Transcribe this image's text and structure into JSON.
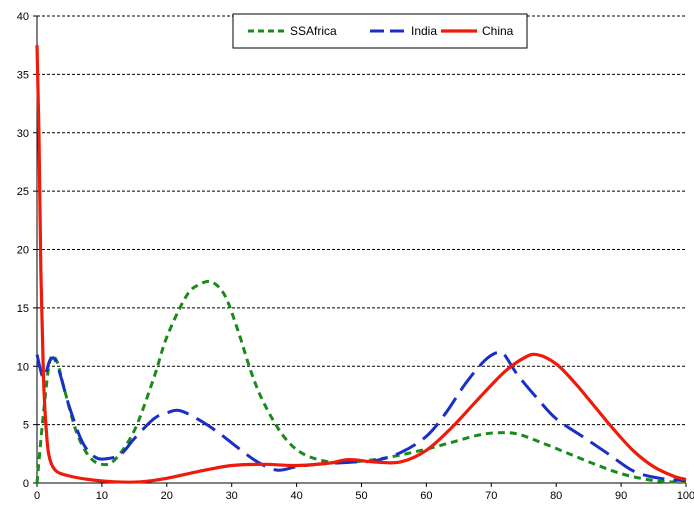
{
  "chart_data": {
    "type": "line",
    "title": "",
    "xlabel": "",
    "ylabel": "",
    "xlim": [
      0,
      100
    ],
    "ylim": [
      0,
      40
    ],
    "xticks": [
      0,
      10,
      20,
      30,
      40,
      50,
      60,
      70,
      80,
      90,
      100
    ],
    "yticks": [
      0,
      5,
      10,
      15,
      20,
      25,
      30,
      35,
      40
    ],
    "grid": "horizontal dashed",
    "legend_position": "top-center",
    "series": [
      {
        "name": "SSAfrica",
        "color": "#1a8a1a",
        "dash": "short-dash",
        "x": [
          0,
          1,
          2,
          3,
          4,
          6,
          8,
          10,
          12,
          15,
          18,
          20,
          23,
          25,
          27,
          29,
          31,
          33,
          35,
          38,
          41,
          45,
          48,
          52,
          56,
          60,
          64,
          68,
          71,
          74,
          78,
          82,
          86,
          90,
          94,
          97,
          100
        ],
        "y": [
          0,
          6,
          10.5,
          10.5,
          8.5,
          4.5,
          2.3,
          1.6,
          2.0,
          4.5,
          9.0,
          12.5,
          16.0,
          17.0,
          17.2,
          16.0,
          13.0,
          9.5,
          6.8,
          4.0,
          2.5,
          1.8,
          1.8,
          2.0,
          2.4,
          2.9,
          3.5,
          4.1,
          4.3,
          4.2,
          3.4,
          2.5,
          1.6,
          0.8,
          0.3,
          0.1,
          0.1
        ]
      },
      {
        "name": "India",
        "color": "#1a2fc8",
        "dash": "long-dash",
        "x": [
          0,
          1,
          2,
          3,
          5,
          7,
          9,
          11,
          13,
          15,
          18,
          20,
          22,
          25,
          28,
          31,
          34,
          37,
          40,
          43,
          46,
          49,
          52,
          56,
          60,
          63,
          66,
          69,
          71,
          72,
          74,
          77,
          80,
          84,
          88,
          92,
          96,
          100
        ],
        "y": [
          11,
          9,
          10.5,
          10.3,
          6.5,
          3.5,
          2.2,
          2.1,
          2.5,
          3.8,
          5.5,
          6.0,
          6.2,
          5.4,
          4.3,
          3.0,
          1.8,
          1.1,
          1.4,
          1.6,
          1.7,
          1.8,
          1.9,
          2.6,
          4.0,
          6.0,
          8.5,
          10.5,
          11.2,
          11.0,
          9.3,
          7.3,
          5.5,
          4.0,
          2.5,
          1.0,
          0.4,
          0.2
        ]
      },
      {
        "name": "China",
        "color": "#ee1a0a",
        "dash": "solid",
        "x": [
          0,
          0.3,
          0.6,
          1,
          1.5,
          2,
          3,
          5,
          8,
          12,
          16,
          20,
          25,
          30,
          35,
          40,
          45,
          48,
          52,
          56,
          60,
          64,
          68,
          72,
          75,
          77,
          80,
          83,
          86,
          89,
          92,
          95,
          98,
          100
        ],
        "y": [
          37.5,
          30,
          18,
          9,
          4,
          2,
          1,
          0.6,
          0.3,
          0.1,
          0.1,
          0.4,
          1.0,
          1.5,
          1.6,
          1.5,
          1.7,
          2.0,
          1.8,
          1.8,
          2.8,
          4.8,
          7.2,
          9.5,
          10.7,
          11.0,
          10.2,
          8.5,
          6.5,
          4.5,
          2.7,
          1.4,
          0.6,
          0.3
        ]
      }
    ]
  }
}
